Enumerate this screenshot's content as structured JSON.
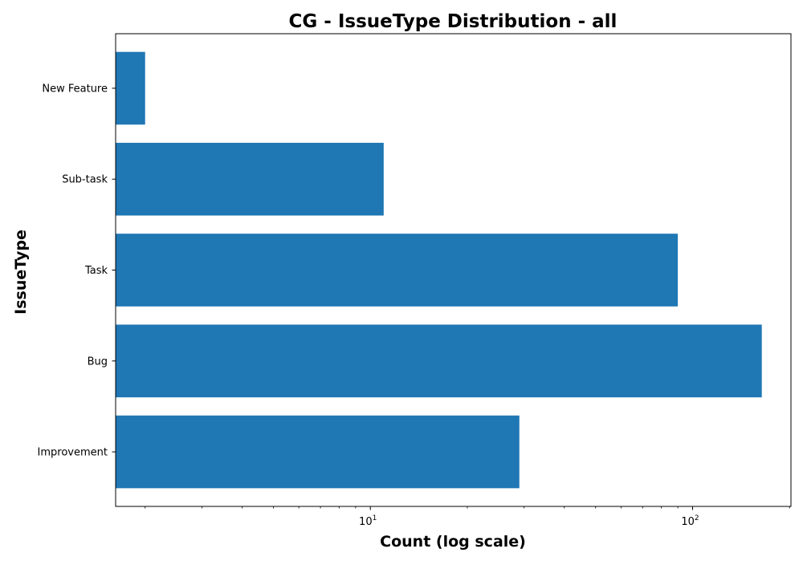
{
  "chart_data": {
    "type": "bar",
    "orientation": "horizontal",
    "title": "CG - IssueType Distribution - all",
    "xlabel": "Count (log scale)",
    "ylabel": "IssueType",
    "xscale": "log",
    "xlim": [
      1.62,
      202
    ],
    "grid": false,
    "legend": "none",
    "bar_color": "#1f77b4",
    "categories": [
      "New Feature",
      "Sub-task",
      "Task",
      "Bug",
      "Improvement"
    ],
    "values": [
      2,
      11,
      90,
      164,
      29
    ],
    "x_ticks": [
      {
        "value": 10,
        "base": "10",
        "exponent": "1"
      },
      {
        "value": 100,
        "base": "10",
        "exponent": "2"
      }
    ]
  }
}
